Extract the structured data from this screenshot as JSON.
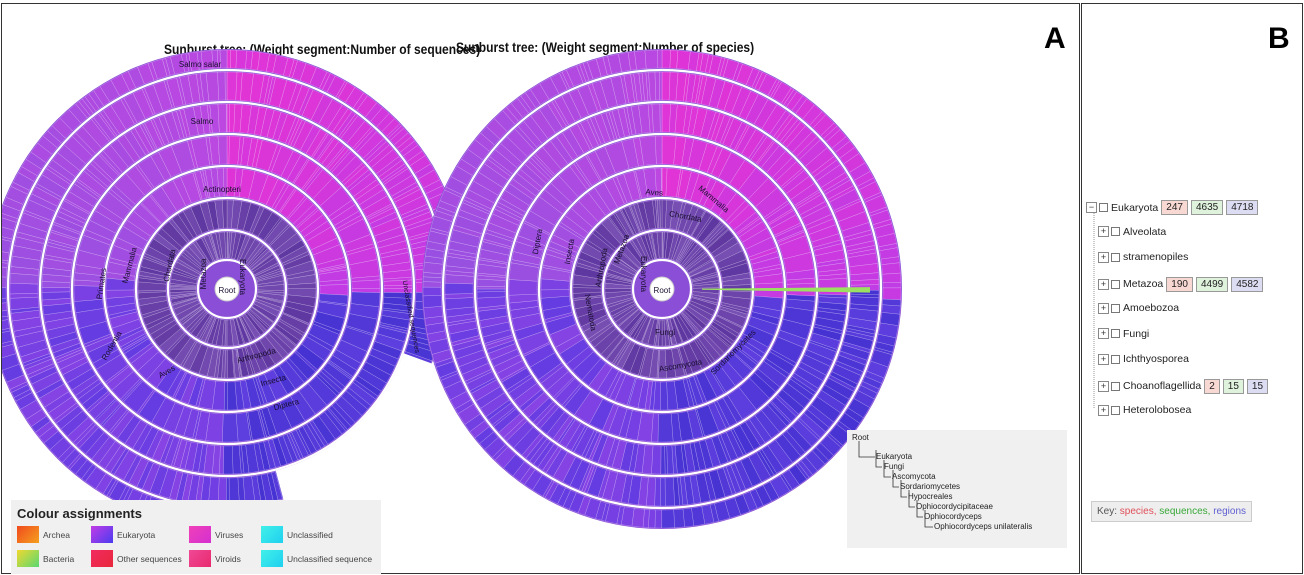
{
  "panelA": {
    "letter": "A",
    "chart1_title": "Sunburst tree: (Weight segment:Number of sequences)",
    "chart2_title": "Sunburst tree: (Weight segment:Number of species)",
    "chart1_labels": [
      "Root",
      "Eukaryota",
      "Metazoa",
      "Chordata",
      "Mammalia",
      "Primates",
      "Rodentia",
      "Aves",
      "Actinopteri",
      "Salmo",
      "Salmo salar",
      "Arthropoda",
      "Insecta",
      "Diptera",
      "Unclassified sequences"
    ],
    "chart2_labels": [
      "Root",
      "Eukaryota",
      "Metazoa",
      "Arthropoda",
      "Insecta",
      "Diptera",
      "Chordata",
      "Aves",
      "Mammalia",
      "Nematoda",
      "Fungi",
      "Ascomycota",
      "Sordariomycetes"
    ],
    "legend": {
      "title": "Colour assignments",
      "items": [
        {
          "label": "Archea",
          "color": "#f0801e"
        },
        {
          "label": "Bacteria",
          "color": "#8ed85a"
        },
        {
          "label": "Eukaryota",
          "color": "#7a3cf0"
        },
        {
          "label": "Other sequences",
          "color": "#ee2a48"
        },
        {
          "label": "Viruses",
          "color": "#e236c6"
        },
        {
          "label": "Viroids",
          "color": "#ee2c88"
        },
        {
          "label": "Unclassified",
          "color": "#2ee0e8"
        },
        {
          "label": "Unclassified sequence",
          "color": "#2ee0e8"
        }
      ]
    },
    "lineage": [
      "Root",
      "Eukaryota",
      "Fungi",
      "Ascomycota",
      "Sordariomycetes",
      "Hypocreales",
      "Ophiocordycipitaceae",
      "Ophiocordyceps",
      "Ophiocordyceps unilateralis"
    ]
  },
  "panelB": {
    "letter": "B",
    "tree": [
      {
        "label": "Eukaryota",
        "toggle": "−",
        "counts": [
          "247",
          "4635",
          "4718"
        ]
      },
      {
        "label": "Alveolata",
        "toggle": "+",
        "counts": []
      },
      {
        "label": "stramenopiles",
        "toggle": "+",
        "counts": []
      },
      {
        "label": "Metazoa",
        "toggle": "+",
        "counts": [
          "190",
          "4499",
          "4582"
        ]
      },
      {
        "label": "Amoebozoa",
        "toggle": "+",
        "counts": []
      },
      {
        "label": "Fungi",
        "toggle": "+",
        "counts": []
      },
      {
        "label": "Ichthyosporea",
        "toggle": "+",
        "counts": []
      },
      {
        "label": "Choanoflagellida",
        "toggle": "+",
        "counts": [
          "2",
          "15",
          "15"
        ]
      },
      {
        "label": "Heterolobosea",
        "toggle": "+",
        "counts": []
      }
    ],
    "key": {
      "prefix": "Key:",
      "species": "species,",
      "sequences": "sequences,",
      "regions": "regions"
    }
  }
}
